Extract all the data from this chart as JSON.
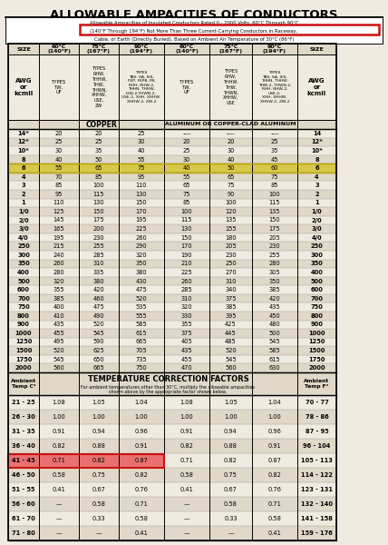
{
  "title": "ALLOWABLE AMPACITIES OF CONDUCTORS",
  "bg_color": "#f0ebe0",
  "stripe_color": "#e0d8c8",
  "white_color": "#ffffff",
  "copper_header_bg": "#c8a030",
  "copper_type_highlight_bg": "#e0c050",
  "row6_highlight_bg": "#d8c848",
  "temp_red_bg": "#e87070",
  "header_box_red": "#cc1111",
  "col_headers_top": [
    "SIZE",
    "60°C\n(140°F)",
    "75°C\n(167°F)",
    "90°C\n(194°F)",
    "60°C\n(140°F)",
    "75°C\n(167°F)",
    "90°C\n(194°F)",
    "SIZE"
  ],
  "awg_label": "AWG\nor\nkcmil",
  "copper_col1_types": "TYPES\nTW,\nUF",
  "copper_col2_types": "TYPES\nRHW,\nTHHW,\nTHW,\nTHWN,\nXHHW,\nUSE,\nZW",
  "copper_col3_types": "TYPES\nTBS, SA, SIS,\nFEP, FEPB, MI,\nRHH, RHW-2,\nTHHN, THHW,\nIHW-2,THWN-2,\nUSE-2, XHH, XHHW,\nXHHW-2, ZW-2",
  "al_col1_types": "TYPES\nTW,\nUF",
  "al_col2_types": "TYPES\nRHW,\nTHHW,\nTHW,\nTHWN,\nXHHW,\nUSE",
  "al_col3_types": "TYPES\nTBS, SA, SIS,\nTHHN, THHW,\nTHW-2, THWN-2,\nRHH, RHW-2,\nUSE-2,\nXHH, XHHW,\nXHHW-2, ZW-2",
  "copper_label": "COPPER",
  "al_label": "ALUMINUM OR COPPER-CLAD ALUMINUM",
  "main_data": [
    [
      "14*",
      "20",
      "20",
      "25",
      "----",
      "----",
      "----",
      "14"
    ],
    [
      "12*",
      "25",
      "25",
      "30",
      "20",
      "20",
      "25",
      "12*"
    ],
    [
      "10*",
      "30",
      "35",
      "40",
      "25",
      "30",
      "35",
      "10*"
    ],
    [
      "8",
      "40",
      "50",
      "55",
      "30",
      "40",
      "45",
      "8"
    ],
    [
      "6",
      "55",
      "65",
      "75",
      "40",
      "50",
      "60",
      "6"
    ],
    [
      "4",
      "70",
      "85",
      "95",
      "55",
      "65",
      "75",
      "4"
    ],
    [
      "3",
      "85",
      "100",
      "110",
      "65",
      "75",
      "85",
      "3"
    ],
    [
      "2",
      "95",
      "115",
      "130",
      "75",
      "90",
      "100",
      "2"
    ],
    [
      "1",
      "110",
      "130",
      "150",
      "85",
      "100",
      "115",
      "1"
    ],
    [
      "1/0",
      "125",
      "150",
      "170",
      "100",
      "120",
      "135",
      "1/0"
    ],
    [
      "2/0",
      "145",
      "175",
      "195",
      "115",
      "135",
      "150",
      "2/0"
    ],
    [
      "3/0",
      "165",
      "200",
      "225",
      "130",
      "155",
      "175",
      "3/0"
    ],
    [
      "4/0",
      "195",
      "230",
      "260",
      "150",
      "180",
      "205",
      "4/0"
    ],
    [
      "250",
      "215",
      "255",
      "290",
      "170",
      "205",
      "230",
      "250"
    ],
    [
      "300",
      "240",
      "285",
      "320",
      "190",
      "230",
      "255",
      "300"
    ],
    [
      "350",
      "260",
      "310",
      "350",
      "210",
      "250",
      "280",
      "350"
    ],
    [
      "400",
      "280",
      "335",
      "380",
      "225",
      "270",
      "305",
      "400"
    ],
    [
      "500",
      "320",
      "380",
      "430",
      "260",
      "310",
      "350",
      "500"
    ],
    [
      "600",
      "355",
      "420",
      "475",
      "285",
      "340",
      "385",
      "600"
    ],
    [
      "700",
      "385",
      "460",
      "520",
      "310",
      "375",
      "420",
      "700"
    ],
    [
      "750",
      "400",
      "475",
      "535",
      "320",
      "385",
      "435",
      "750"
    ],
    [
      "800",
      "410",
      "490",
      "555",
      "330",
      "395",
      "450",
      "800"
    ],
    [
      "900",
      "435",
      "520",
      "585",
      "355",
      "425",
      "480",
      "900"
    ],
    [
      "1000",
      "455",
      "545",
      "615",
      "375",
      "445",
      "500",
      "1000"
    ],
    [
      "1250",
      "495",
      "590",
      "665",
      "405",
      "485",
      "545",
      "1250"
    ],
    [
      "1500",
      "520",
      "625",
      "705",
      "435",
      "520",
      "585",
      "1500"
    ],
    [
      "1750",
      "545",
      "650",
      "735",
      "455",
      "545",
      "615",
      "1750"
    ],
    [
      "2000",
      "560",
      "665",
      "750",
      "470",
      "560",
      "630",
      "2000"
    ]
  ],
  "highlight_row_main": 4,
  "temp_header": "TEMPERATURE CORRECTION FACTORS",
  "temp_subheader": "For ambient temperatures other than 30°C, multiply the allowable ampacities\nshown above by the appropriate factor shown below.",
  "temp_col1": "Ambient\nTemp C°",
  "temp_col_last": "Ambient\nTemp F°",
  "temp_data": [
    [
      "21 - 25",
      "1.08",
      "1.05",
      "1.04",
      "1.08",
      "1.05",
      "1.04",
      "70 - 77"
    ],
    [
      "26 - 30",
      "1.00",
      "1.00",
      "1.00",
      "1.00",
      "1.00",
      "1.00",
      "78 - 86"
    ],
    [
      "31 - 35",
      "0.91",
      "0.94",
      "0.96",
      "0.91",
      "0.94",
      "0.96",
      "87 - 95"
    ],
    [
      "36 - 40",
      "0.82",
      "0.88",
      "0.91",
      "0.82",
      "0.88",
      "0.91",
      "96 - 104"
    ],
    [
      "41 - 45",
      "0.71",
      "0.82",
      "0.87",
      "0.71",
      "0.82",
      "0.87",
      "105 - 113"
    ],
    [
      "46 - 50",
      "0.58",
      "0.75",
      "0.82",
      "0.58",
      "0.75",
      "0.82",
      "114 - 122"
    ],
    [
      "51 - 55",
      "0.41",
      "0.67",
      "0.76",
      "0.41",
      "0.67",
      "0.76",
      "123 - 131"
    ],
    [
      "56 - 60",
      "—",
      "0.58",
      "0.71",
      "—",
      "0.58",
      "0.71",
      "132 - 140"
    ],
    [
      "61 - 70",
      "—",
      "0.33",
      "0.58",
      "—",
      "0.33",
      "0.58",
      "141 - 158"
    ],
    [
      "71 - 80",
      "—",
      "—",
      "0.41",
      "—",
      "—",
      "0.41",
      "159 - 176"
    ]
  ],
  "highlight_row_temp": 4
}
